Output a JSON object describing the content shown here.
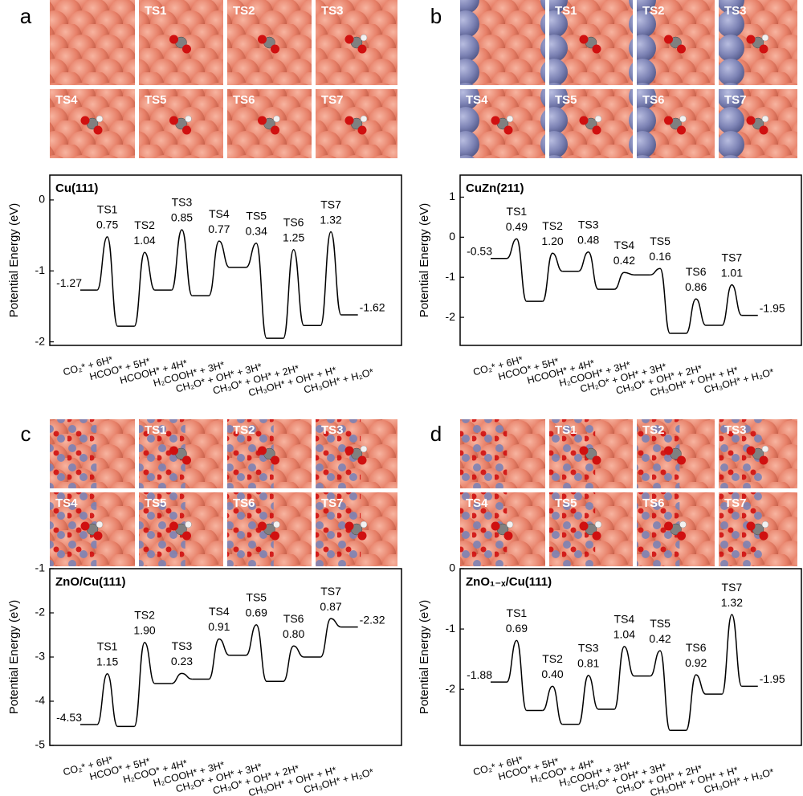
{
  "chart_data": [
    {
      "type": "line",
      "panel": "a",
      "title": "Cu(111)",
      "y_label": "Potential Energy (eV)",
      "categories": [
        "CO₂* + 6H*",
        "HCOO* + 5H*",
        "HCOOH* + 4H*",
        "H₂COOH* + 3H*",
        "CH₂O* + OH* + 3H*",
        "CH₃O* + OH* + 2H*",
        "CH₃OH* + OH* + H*",
        "CH₃OH* + H₂O*"
      ],
      "ts_labels": [
        "TS1",
        "TS2",
        "TS3",
        "TS4",
        "TS5",
        "TS6",
        "TS7"
      ],
      "values": [
        -1.27,
        -1.78,
        -1.27,
        -1.35,
        -0.95,
        -1.95,
        -1.77,
        -1.62
      ],
      "barriers": [
        0.75,
        1.04,
        0.85,
        0.77,
        0.34,
        1.25,
        1.32
      ],
      "barrier_labels": [
        "0.75",
        "1.04",
        "0.85",
        "0.77",
        "0.34",
        "1.25",
        "1.32"
      ],
      "ylim": [
        -2.05,
        0.35
      ],
      "yticks": [
        0,
        -1,
        -2
      ],
      "color": "#000000"
    },
    {
      "type": "line",
      "panel": "b",
      "title": "CuZn(211)",
      "y_label": "Potential Energy (eV)",
      "categories": [
        "CO₂* + 6H*",
        "HCOO* + 5H*",
        "HCOOH* + 4H*",
        "H₂COOH* + 3H*",
        "CH₂O* + OH* + 3H*",
        "CH₃O* + OH* + 2H*",
        "CH₃OH* + OH* + H*",
        "CH₃OH* + H₂O*"
      ],
      "ts_labels": [
        "TS1",
        "TS2",
        "TS3",
        "TS4",
        "TS5",
        "TS6",
        "TS7"
      ],
      "values": [
        -0.53,
        -1.6,
        -0.85,
        -1.3,
        -0.94,
        -2.4,
        -2.2,
        -1.95
      ],
      "barriers": [
        0.49,
        1.2,
        0.48,
        0.42,
        0.16,
        0.86,
        1.01
      ],
      "barrier_labels": [
        "0.49",
        "1.20",
        "0.48",
        "0.42",
        "0.16",
        "0.86",
        "1.01"
      ],
      "ylim": [
        -2.7,
        1.55
      ],
      "yticks": [
        1,
        0,
        -1,
        -2
      ],
      "color": "#000000"
    },
    {
      "type": "line",
      "panel": "c",
      "title": "ZnO/Cu(111)",
      "y_label": "Potential Energy (eV)",
      "categories": [
        "CO₂* + 6H*",
        "HCOO* + 5H*",
        "H₂COO* + 4H*",
        "H₂COOH* + 3H*",
        "CH₂O* + OH* + 3H*",
        "CH₃O* + OH* + 2H*",
        "CH₃OH* + OH* + H*",
        "CH₃OH* + H₂O*"
      ],
      "ts_labels": [
        "TS1",
        "TS2",
        "TS3",
        "TS4",
        "TS5",
        "TS6",
        "TS7"
      ],
      "values": [
        -4.53,
        -4.57,
        -3.6,
        -3.5,
        -2.96,
        -3.55,
        -3.0,
        -2.32
      ],
      "barriers": [
        1.15,
        1.9,
        0.23,
        0.91,
        0.69,
        0.8,
        0.87
      ],
      "barrier_labels": [
        "1.15",
        "1.90",
        "0.23",
        "0.91",
        "0.69",
        "0.80",
        "0.87"
      ],
      "ylim": [
        -5,
        -1
      ],
      "yticks": [
        -1,
        -2,
        -3,
        -4,
        -5
      ],
      "color": "#000000"
    },
    {
      "type": "line",
      "panel": "d",
      "title": "ZnO₁₋ₓ/Cu(111)",
      "y_label": "Potential Energy (eV)",
      "categories": [
        "CO₂* + 6H*",
        "HCOO* + 5H*",
        "H₂COO* + 4H*",
        "H₂COOH* + 3H*",
        "CH₂O* + OH* + 3H*",
        "CH₃O* + OH* + 2H*",
        "CH₃OH* + OH* + H*",
        "CH₃OH* + H₂O*"
      ],
      "ts_labels": [
        "TS1",
        "TS2",
        "TS3",
        "TS4",
        "TS5",
        "TS6",
        "TS7"
      ],
      "values": [
        -1.88,
        -2.35,
        -2.58,
        -2.33,
        -1.78,
        -2.68,
        -2.08,
        -1.95
      ],
      "barriers": [
        0.69,
        0.4,
        0.81,
        1.04,
        0.42,
        0.92,
        1.32
      ],
      "barrier_labels": [
        "0.69",
        "0.40",
        "0.81",
        "1.04",
        "0.42",
        "0.92",
        "1.32"
      ],
      "ylim": [
        -2.93,
        0
      ],
      "yticks": [
        0,
        -1,
        -2
      ],
      "color": "#000000"
    }
  ]
}
